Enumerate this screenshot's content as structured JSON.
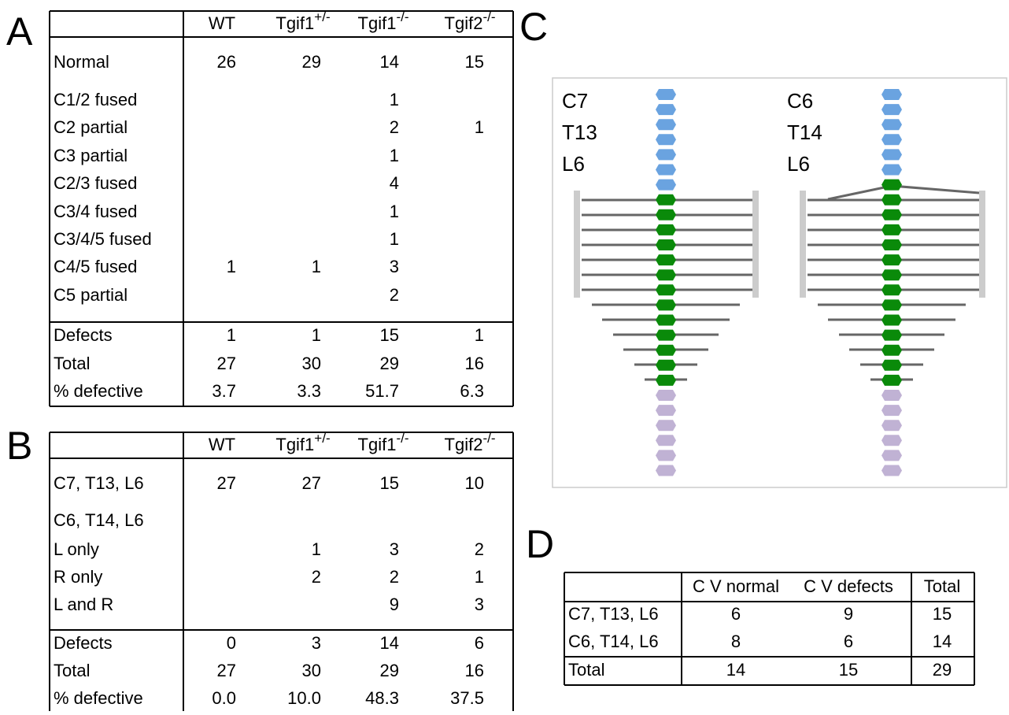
{
  "panels": {
    "a": "A",
    "b": "B",
    "c": "C",
    "d": "D"
  },
  "table_a": {
    "header": [
      {
        "text": "WT"
      },
      {
        "text": "Tgif1",
        "sup": "+/-"
      },
      {
        "text": "Tgif1",
        "sup": "-/-"
      },
      {
        "text": "Tgif2",
        "sup": "-/-"
      }
    ],
    "rows": [
      [
        "Normal",
        "26",
        "29",
        "14",
        "15"
      ],
      [
        "C1/2 fused",
        null,
        null,
        "1",
        null
      ],
      [
        "C2 partial",
        null,
        null,
        "2",
        "1"
      ],
      [
        "C3 partial",
        null,
        null,
        "1",
        null
      ],
      [
        "C2/3 fused",
        null,
        null,
        "4",
        null
      ],
      [
        "C3/4 fused",
        null,
        null,
        "1",
        null
      ],
      [
        "C3/4/5 fused",
        null,
        null,
        "1",
        null
      ],
      [
        "C4/5 fused",
        "1",
        "1",
        "3",
        null
      ],
      [
        "C5 partial",
        null,
        null,
        "2",
        null
      ]
    ],
    "summary": [
      [
        "Defects",
        "1",
        "1",
        "15",
        "1"
      ],
      [
        "Total",
        "27",
        "30",
        "29",
        "16"
      ],
      [
        "% defective",
        "3.7",
        "3.3",
        "51.7",
        "6.3"
      ]
    ]
  },
  "table_b": {
    "header": [
      {
        "text": "WT"
      },
      {
        "text": "Tgif1",
        "sup": "+/-"
      },
      {
        "text": "Tgif1",
        "sup": "-/-"
      },
      {
        "text": "Tgif2",
        "sup": "-/-"
      }
    ],
    "rows": [
      [
        "C7, T13, L6",
        "27",
        "27",
        "15",
        "10"
      ],
      [
        "C6, T14, L6",
        null,
        null,
        null,
        null
      ],
      [
        "L only",
        null,
        "1",
        "3",
        "2"
      ],
      [
        "R only",
        null,
        "2",
        "2",
        "1"
      ],
      [
        "L and R",
        null,
        null,
        "9",
        "3"
      ]
    ],
    "summary": [
      [
        "Defects",
        "0",
        "3",
        "14",
        "6"
      ],
      [
        "Total",
        "27",
        "30",
        "29",
        "16"
      ],
      [
        "% defective",
        "0.0",
        "10.0",
        "48.3",
        "37.5"
      ]
    ]
  },
  "diagram_c": {
    "left": [
      "C7",
      "T13",
      "L6"
    ],
    "right": [
      "C6",
      "T14",
      "L6"
    ]
  },
  "table_d": {
    "header": [
      "C V normal",
      "C V defects",
      "Total"
    ],
    "rows": [
      [
        "C7, T13, L6",
        "6",
        "9",
        "15"
      ],
      [
        "C6, T14, L6",
        "8",
        "6",
        "14"
      ],
      [
        "Total",
        "14",
        "15",
        "29"
      ]
    ]
  }
}
